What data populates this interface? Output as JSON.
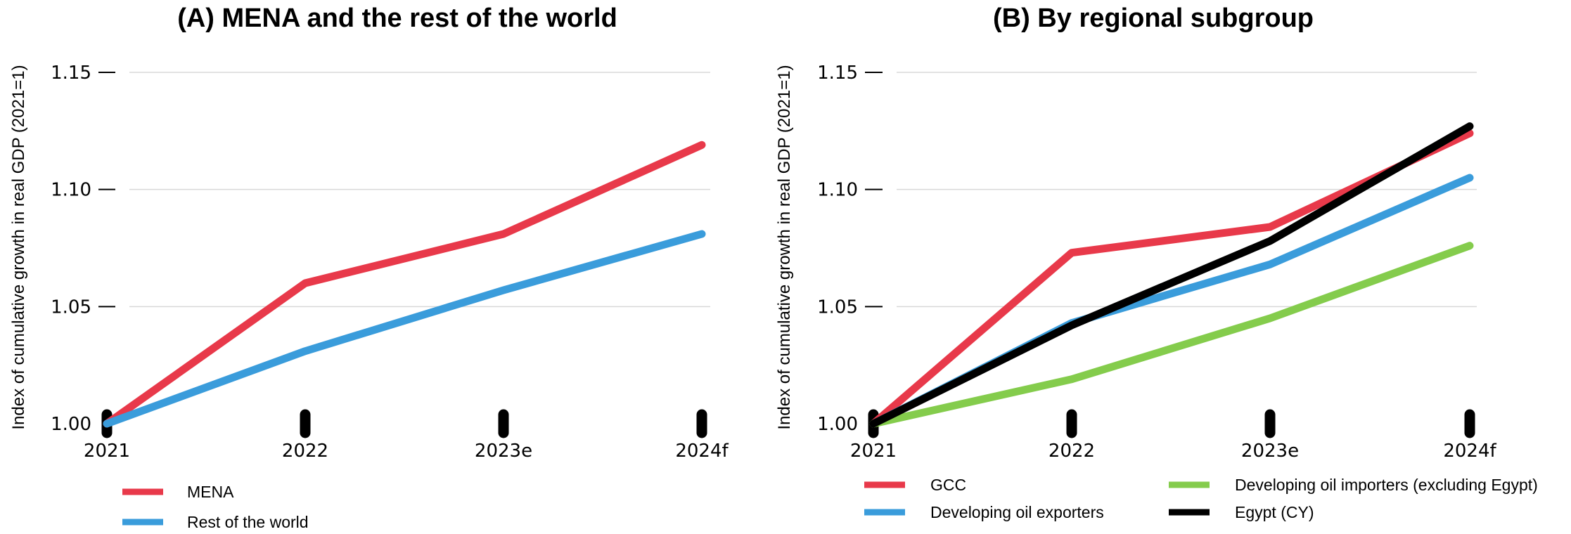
{
  "chart_data": [
    {
      "type": "line",
      "title": "(A) MENA and the rest of the world",
      "ylabel": "Index of cumulative growth in real GDP (2021=1)",
      "xlabel": "",
      "categories": [
        "2021",
        "2022",
        "2023e",
        "2024f"
      ],
      "yticks": [
        "1.00",
        "1.05",
        "1.10",
        "1.15"
      ],
      "ylim": [
        1.0,
        1.15
      ],
      "grid": true,
      "legend_position": "bottom-left",
      "series": [
        {
          "name": "MENA",
          "color": "#E8394A",
          "values": [
            1.0,
            1.06,
            1.081,
            1.119
          ]
        },
        {
          "name": "Rest of the world",
          "color": "#3A9CDB",
          "values": [
            1.0,
            1.031,
            1.057,
            1.081
          ]
        }
      ]
    },
    {
      "type": "line",
      "title": "(B) By regional subgroup",
      "ylabel": "Index of cumulative growth in real GDP (2021=1)",
      "xlabel": "",
      "categories": [
        "2021",
        "2022",
        "2023e",
        "2024f"
      ],
      "yticks": [
        "1.00",
        "1.05",
        "1.10",
        "1.15"
      ],
      "ylim": [
        1.0,
        1.15
      ],
      "grid": true,
      "legend_position": "bottom",
      "series": [
        {
          "name": "GCC",
          "color": "#E8394A",
          "values": [
            1.0,
            1.073,
            1.084,
            1.124
          ]
        },
        {
          "name": "Developing oil exporters",
          "color": "#3A9CDB",
          "values": [
            1.0,
            1.043,
            1.068,
            1.105
          ]
        },
        {
          "name": "Developing oil importers (excluding Egypt)",
          "color": "#84CC4C",
          "values": [
            1.0,
            1.019,
            1.045,
            1.076
          ]
        },
        {
          "name": "Egypt (CY)",
          "color": "#000000",
          "values": [
            1.0,
            1.042,
            1.078,
            1.127
          ]
        }
      ]
    }
  ]
}
